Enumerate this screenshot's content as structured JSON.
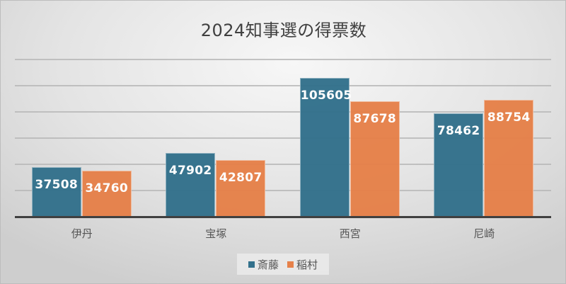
{
  "chart_data": {
    "type": "bar",
    "title": "2024知事選の得票数",
    "categories": [
      "伊丹",
      "宝塚",
      "西宮",
      "尼崎"
    ],
    "series": [
      {
        "name": "斎藤",
        "color": "#33718c",
        "values": [
          37508,
          47902,
          105605,
          78462
        ]
      },
      {
        "name": "稲村",
        "color": "#e6814a",
        "values": [
          34760,
          42807,
          87678,
          88754
        ]
      }
    ],
    "xlabel": "",
    "ylabel": "",
    "ylim": [
      0,
      120000
    ],
    "grid": true,
    "gridline_step": 20000,
    "y_tick_labels_visible": false,
    "data_labels": true,
    "legend_position": "bottom"
  }
}
